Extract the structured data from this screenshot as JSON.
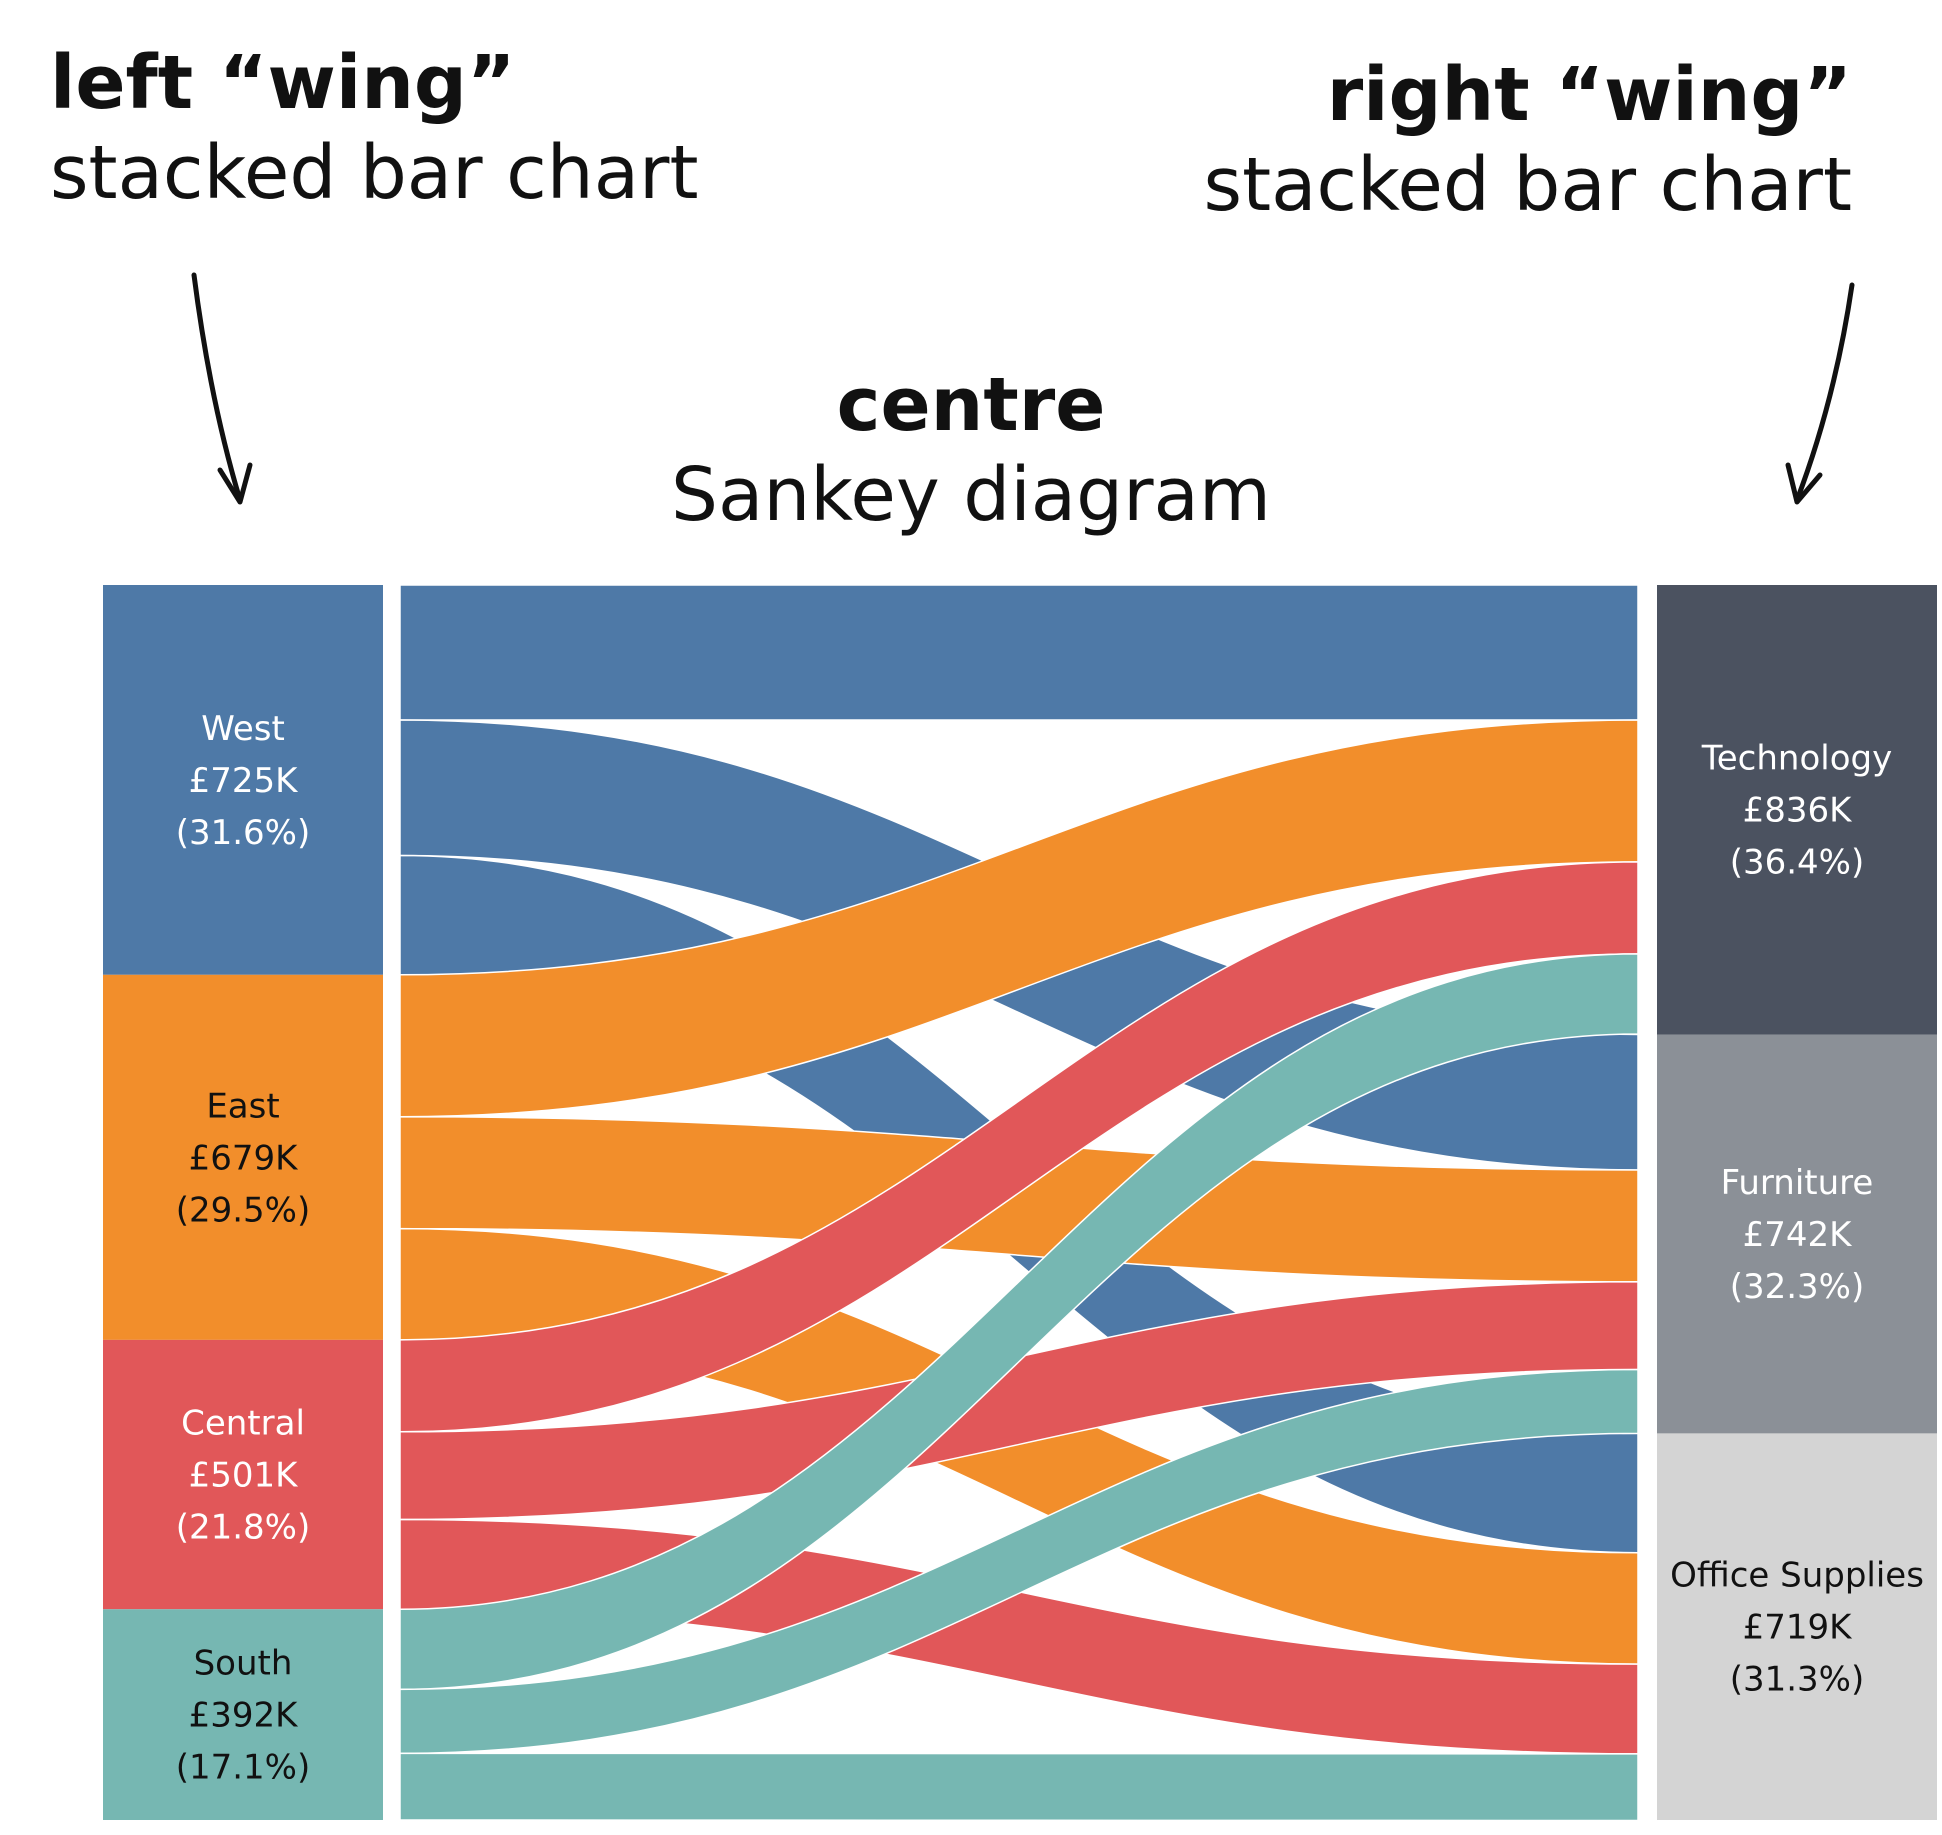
{
  "annotations": {
    "left": {
      "bold": "left “wing”",
      "light": "stacked bar chart"
    },
    "right": {
      "bold": "right “wing”",
      "light": "stacked bar chart"
    },
    "centre": {
      "bold": "centre",
      "light": "Sankey diagram"
    }
  },
  "left_nodes": [
    {
      "id": "west",
      "name": "West",
      "value_label": "£725K",
      "share_label": "(31.6%)",
      "value": 725,
      "color": "#4e79a7",
      "text_color": "#ffffff"
    },
    {
      "id": "east",
      "name": "East",
      "value_label": "£679K",
      "share_label": "(29.5%)",
      "value": 679,
      "color": "#f28e2b",
      "text_color": "#111111"
    },
    {
      "id": "central",
      "name": "Central",
      "value_label": "£501K",
      "share_label": "(21.8%)",
      "value": 501,
      "color": "#e15759",
      "text_color": "#ffffff"
    },
    {
      "id": "south",
      "name": "South",
      "value_label": "£392K",
      "share_label": "(17.1%)",
      "value": 392,
      "color": "#76b7b2",
      "text_color": "#111111"
    }
  ],
  "right_nodes": [
    {
      "id": "technology",
      "name": "Technology",
      "value_label": "£836K",
      "share_label": "(36.4%)",
      "value": 836,
      "color": "#4b5260",
      "text_color": "#ffffff"
    },
    {
      "id": "furniture",
      "name": "Furniture",
      "value_label": "£742K",
      "share_label": "(32.3%)",
      "value": 742,
      "color": "#8b9097",
      "text_color": "#ffffff"
    },
    {
      "id": "office_supplies",
      "name": "Office Supplies",
      "value_label": "£719K",
      "share_label": "(31.3%)",
      "value": 719,
      "color": "#d4d4d4",
      "text_color": "#111111"
    }
  ],
  "flows": [
    {
      "source": "west",
      "target": "technology",
      "value": 251
    },
    {
      "source": "west",
      "target": "furniture",
      "value": 252
    },
    {
      "source": "west",
      "target": "office_supplies",
      "value": 222
    },
    {
      "source": "east",
      "target": "technology",
      "value": 264
    },
    {
      "source": "east",
      "target": "furniture",
      "value": 208
    },
    {
      "source": "east",
      "target": "office_supplies",
      "value": 207
    },
    {
      "source": "central",
      "target": "technology",
      "value": 171
    },
    {
      "source": "central",
      "target": "furniture",
      "value": 163
    },
    {
      "source": "central",
      "target": "office_supplies",
      "value": 167
    },
    {
      "source": "south",
      "target": "technology",
      "value": 149
    },
    {
      "source": "south",
      "target": "furniture",
      "value": 119
    },
    {
      "source": "south",
      "target": "office_supplies",
      "value": 124
    }
  ]
}
